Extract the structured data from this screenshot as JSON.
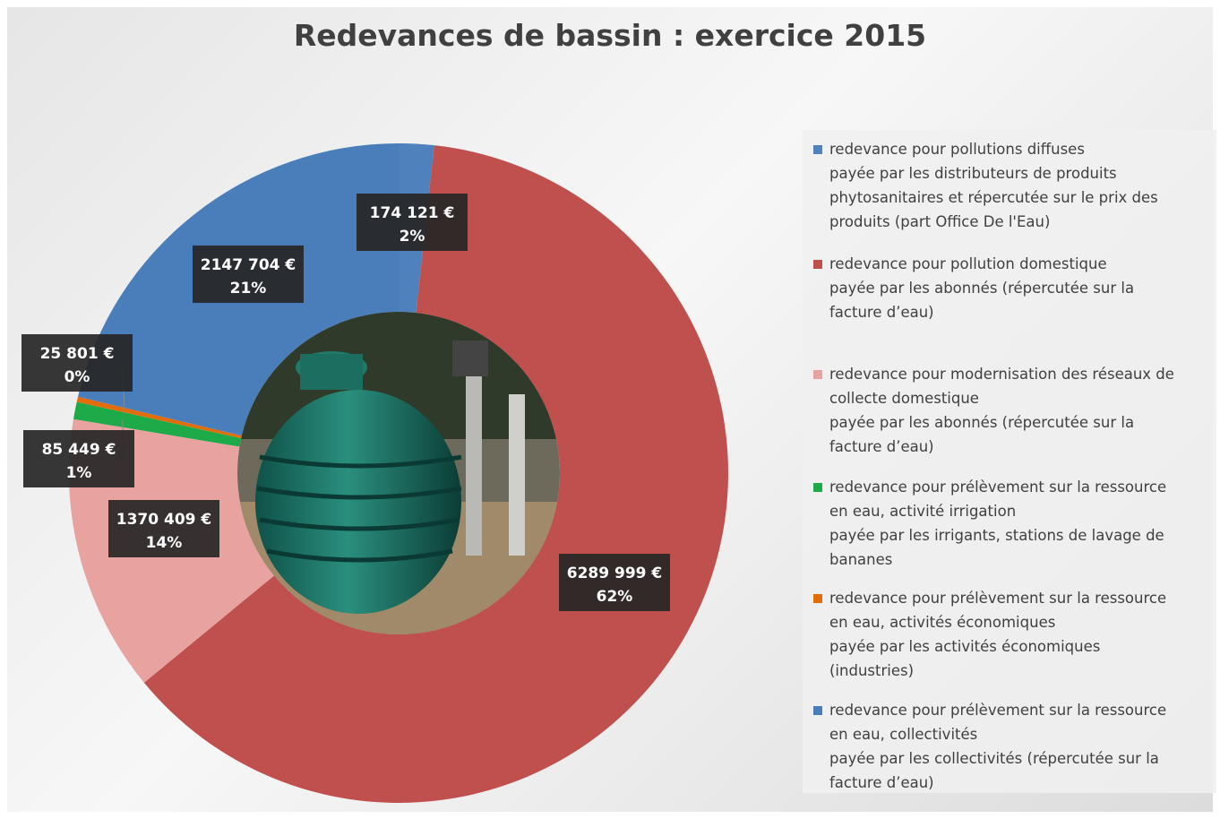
{
  "chart_data": {
    "type": "donut",
    "title": "Redevances de bassin : exercice 2015",
    "categories": [
      "redevance pour pollutions diffuses\npayée par les distributeurs de produits\nphytosanitaires et répercutée sur le prix des\nproduits (part Office De l'Eau)",
      "redevance pour pollution domestique\npayée par les abonnés (répercutée sur la\nfacture d’eau)",
      "redevance pour modernisation des réseaux de\ncollecte domestique\npayée par les abonnés (répercutée sur la\nfacture d’eau)",
      "redevance pour prélèvement sur la ressource\nen eau, activité irrigation\npayée par les irrigants, stations de lavage de\nbananes",
      "redevance pour prélèvement sur la ressource\nen eau, activités économiques\npayée par les activités économiques\n(industries)",
      "redevance pour prélèvement sur la ressource\nen eau, collectivités\npayée par les collectivités (répercutée sur la\nfacture d’eau)"
    ],
    "values": [
      174121,
      6289999,
      1370409,
      85449,
      25801,
      2147704
    ],
    "value_labels": [
      "174 121 €",
      "6289 999 €",
      "1370 409 €",
      "85 449 €",
      "25 801 €",
      "2147 704 €"
    ],
    "percent_labels": [
      "2%",
      "62%",
      "14%",
      "1%",
      "0%",
      "21%"
    ],
    "colors": [
      "#4f81bd",
      "#c0504d",
      "#e8a3a1",
      "#1faa4a",
      "#e36c0a",
      "#4a7ebb"
    ]
  }
}
